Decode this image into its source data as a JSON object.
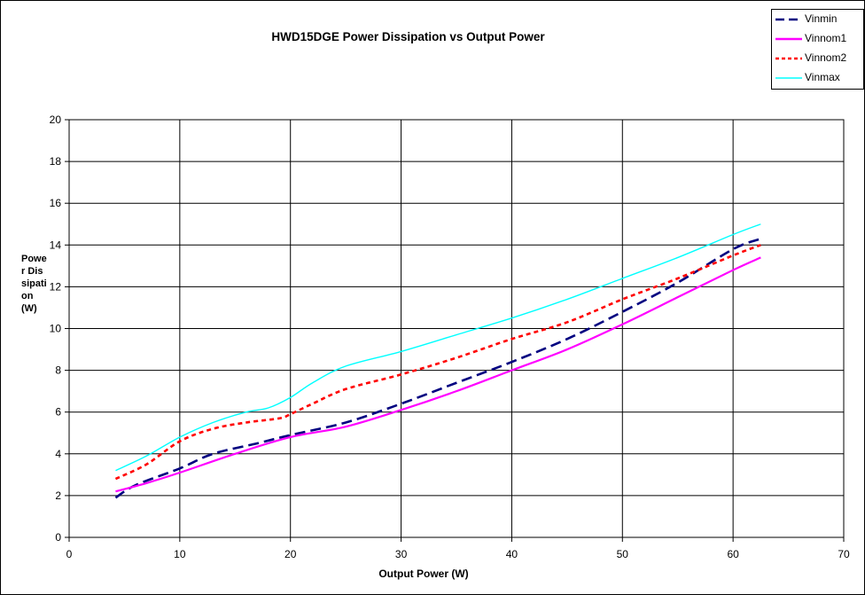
{
  "chart_data": {
    "type": "line",
    "title": "HWD15DGE Power Dissipation vs Output Power",
    "xlabel": "Output Power (W)",
    "ylabel": "Power Dissipation (W)",
    "xlim": [
      0,
      70
    ],
    "ylim": [
      0,
      20
    ],
    "xticks": [
      0,
      10,
      20,
      30,
      40,
      50,
      60,
      70
    ],
    "yticks": [
      0,
      2,
      4,
      6,
      8,
      10,
      12,
      14,
      16,
      18,
      20
    ],
    "grid": true,
    "legend_position": "top-right",
    "series": [
      {
        "name": "Vinmin",
        "color": "#000080",
        "style": "dashed",
        "x": [
          4.2,
          6,
          10,
          13,
          17,
          20,
          25,
          30,
          35,
          40,
          45,
          50,
          55,
          60,
          62.5
        ],
        "y": [
          1.9,
          2.5,
          3.3,
          4.0,
          4.5,
          4.9,
          5.5,
          6.4,
          7.4,
          8.4,
          9.5,
          10.8,
          12.2,
          13.8,
          14.3
        ]
      },
      {
        "name": "Vinnom1",
        "color": "#ff00ff",
        "style": "solid",
        "x": [
          4.2,
          7,
          10,
          15,
          20,
          25,
          30,
          35,
          40,
          45,
          50,
          55,
          60,
          62.5
        ],
        "y": [
          2.2,
          2.6,
          3.1,
          4.0,
          4.8,
          5.3,
          6.1,
          7.0,
          8.0,
          9.0,
          10.2,
          11.5,
          12.8,
          13.4
        ]
      },
      {
        "name": "Vinnom2",
        "color": "#ff0000",
        "style": "dotted",
        "x": [
          4.2,
          7,
          10,
          13,
          16,
          19,
          20,
          22,
          25,
          30,
          35,
          40,
          45,
          50,
          55,
          60,
          62.5
        ],
        "y": [
          2.8,
          3.5,
          4.6,
          5.2,
          5.5,
          5.7,
          5.9,
          6.4,
          7.1,
          7.8,
          8.6,
          9.5,
          10.3,
          11.4,
          12.4,
          13.5,
          14.0
        ]
      },
      {
        "name": "Vinmax",
        "color": "#00ffff",
        "style": "solid",
        "x": [
          4.2,
          7,
          10,
          13,
          16,
          18,
          20,
          22,
          25,
          30,
          35,
          40,
          45,
          50,
          55,
          60,
          62.5
        ],
        "y": [
          3.2,
          3.9,
          4.8,
          5.5,
          6.0,
          6.2,
          6.7,
          7.4,
          8.2,
          8.9,
          9.7,
          10.5,
          11.4,
          12.4,
          13.4,
          14.5,
          15.0
        ]
      }
    ]
  },
  "legend": {
    "items": [
      {
        "label": "Vinmin",
        "color": "#000080",
        "style": "dashed"
      },
      {
        "label": "Vinnom1",
        "color": "#ff00ff",
        "style": "solid"
      },
      {
        "label": "Vinnom2",
        "color": "#ff0000",
        "style": "dotted"
      },
      {
        "label": "Vinmax",
        "color": "#00ffff",
        "style": "solid"
      }
    ]
  }
}
